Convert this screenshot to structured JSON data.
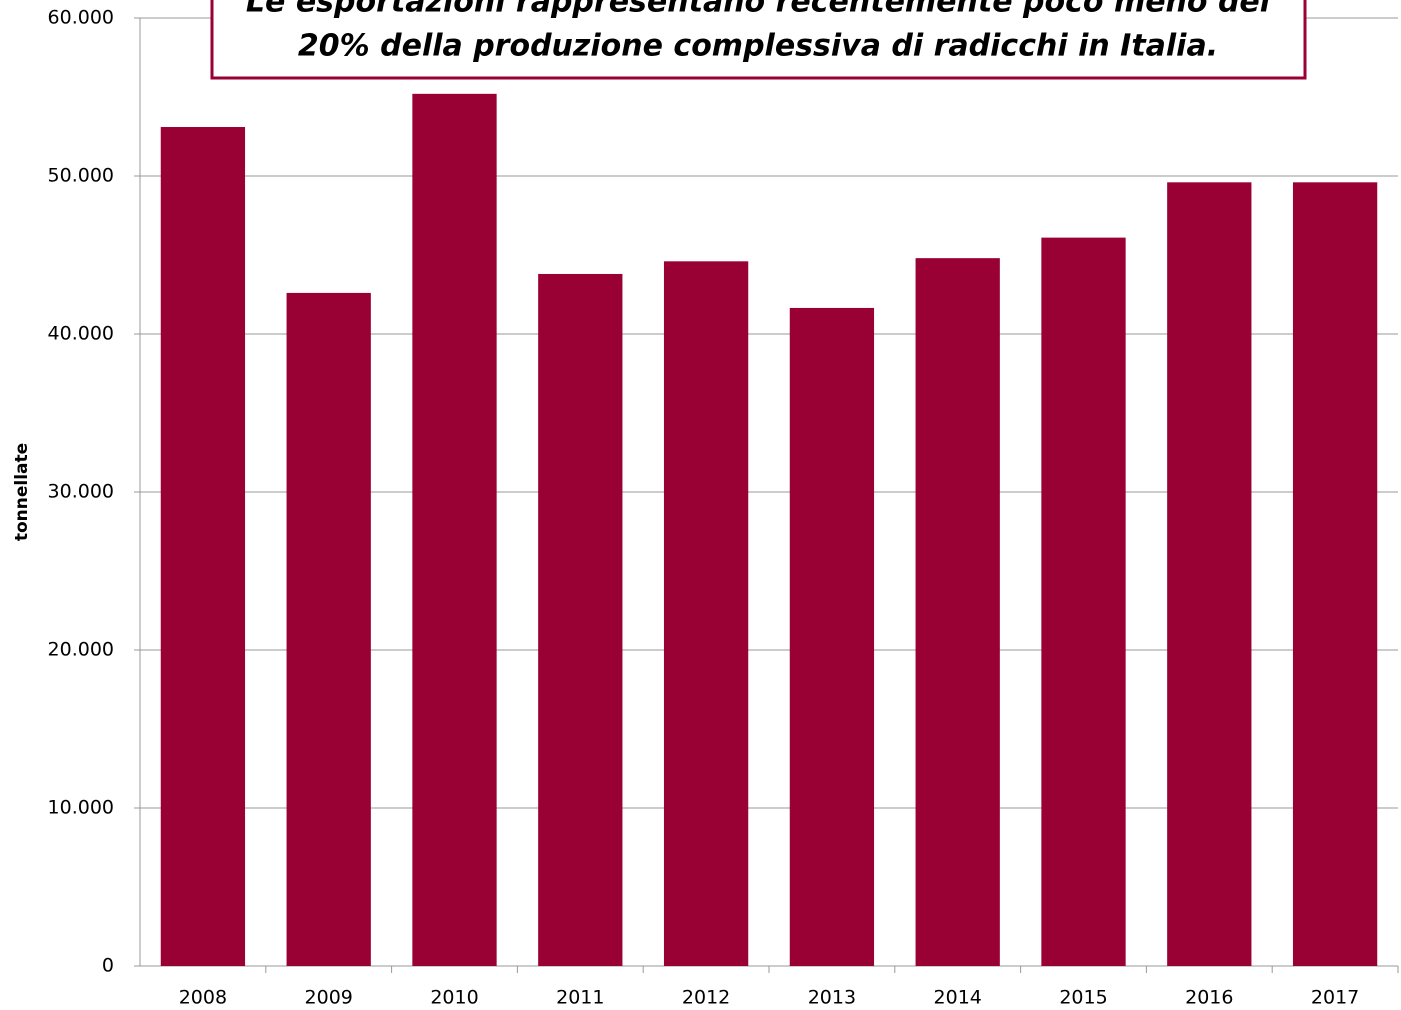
{
  "chart_data": {
    "type": "bar",
    "annotation": [
      "Le esportazioni rappresentano recentemente poco meno del",
      "20% della produzione complessiva di radicchi in Italia."
    ],
    "y_label": "tonnellate",
    "categories": [
      "2008",
      "2009",
      "2010",
      "2011",
      "2012",
      "2013",
      "2014",
      "2015",
      "2016",
      "2017"
    ],
    "values": [
      53100,
      42600,
      55200,
      43800,
      44600,
      41650,
      44800,
      46100,
      49600,
      49600
    ],
    "color": "#990033",
    "ylim": [
      0,
      60000
    ],
    "yticks": [
      0,
      {
        "value": 10000,
        "label": "10.000"
      },
      {
        "value": 20000,
        "label": "20.000"
      },
      {
        "value": 30000,
        "label": "30.000"
      },
      {
        "value": 40000,
        "label": "40.000"
      },
      {
        "value": 50000,
        "label": "50.000"
      },
      {
        "value": 60000,
        "label": "60.000"
      }
    ],
    "grid": true
  }
}
